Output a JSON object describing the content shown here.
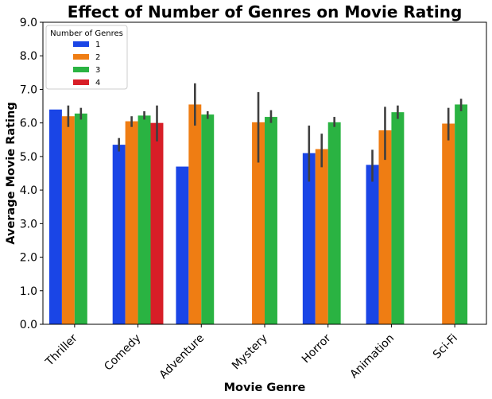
{
  "chart_data": {
    "type": "bar",
    "title": "Effect of Number of Genres on Movie Rating",
    "xlabel": "Movie Genre",
    "ylabel": "Average Movie Rating",
    "ylim": [
      0,
      9
    ],
    "yticks": [
      "0.0",
      "1.0",
      "2.0",
      "3.0",
      "4.0",
      "5.0",
      "6.0",
      "7.0",
      "8.0",
      "9.0"
    ],
    "categories": [
      "Thriller",
      "Comedy",
      "Adventure",
      "Mystery",
      "Horror",
      "Animation",
      "Sci-Fi"
    ],
    "legend": {
      "title": "Number of Genres",
      "position": "top-left"
    },
    "grid": false,
    "series": [
      {
        "name": "1",
        "color": "#1a45e6",
        "values": [
          6.4,
          5.35,
          4.7,
          null,
          5.1,
          4.75,
          null
        ],
        "errors": [
          null,
          [
            5.15,
            5.55
          ],
          null,
          null,
          [
            4.25,
            5.92
          ],
          [
            4.25,
            5.2
          ],
          null
        ]
      },
      {
        "name": "2",
        "color": "#ef7d13",
        "values": [
          6.2,
          6.05,
          6.55,
          6.02,
          5.22,
          5.78,
          5.98
        ],
        "errors": [
          [
            5.88,
            6.52
          ],
          [
            5.88,
            6.2
          ],
          [
            5.92,
            7.18
          ],
          [
            4.82,
            6.92
          ],
          [
            4.68,
            5.68
          ],
          [
            4.9,
            6.48
          ],
          [
            5.48,
            6.45
          ]
        ]
      },
      {
        "name": "3",
        "color": "#2ab342",
        "values": [
          6.28,
          6.22,
          6.25,
          6.18,
          6.02,
          6.32,
          6.55
        ],
        "errors": [
          [
            6.1,
            6.45
          ],
          [
            6.1,
            6.35
          ],
          [
            6.12,
            6.35
          ],
          [
            6.0,
            6.38
          ],
          [
            5.88,
            6.18
          ],
          [
            6.12,
            6.52
          ],
          [
            6.35,
            6.72
          ]
        ]
      },
      {
        "name": "4",
        "color": "#d81e27",
        "values": [
          null,
          6.0,
          null,
          null,
          null,
          null,
          null
        ],
        "errors": [
          null,
          [
            5.45,
            6.52
          ],
          null,
          null,
          null,
          null,
          null
        ]
      }
    ]
  }
}
